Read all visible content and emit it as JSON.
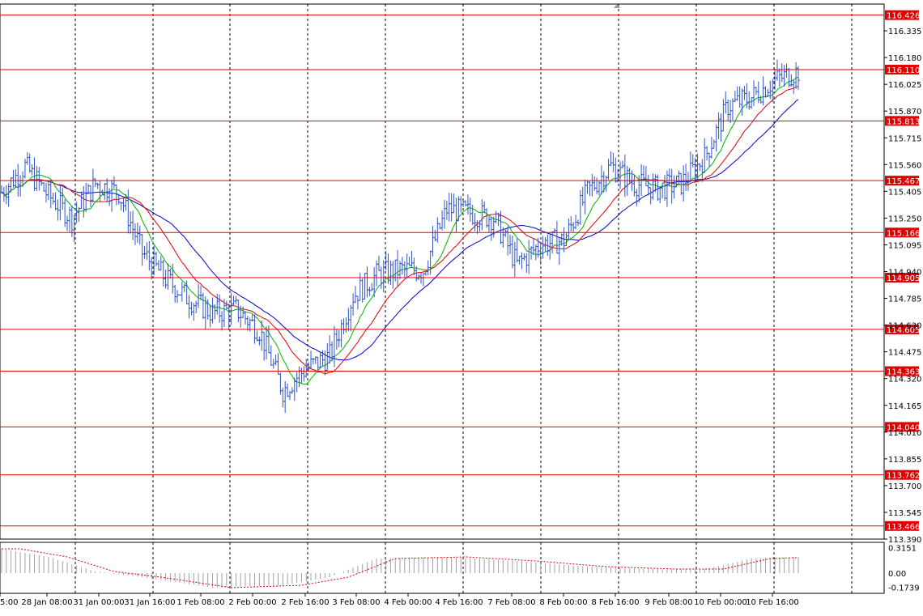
{
  "chart_data": {
    "type": "candlestick",
    "price_axis": {
      "min": 113.39,
      "max": 116.49,
      "ticks": [
        "116.335",
        "116.180",
        "116.025",
        "115.870",
        "115.715",
        "115.560",
        "115.405",
        "115.250",
        "115.095",
        "114.940",
        "114.785",
        "114.630",
        "114.475",
        "114.320",
        "114.165",
        "114.010",
        "113.855",
        "113.700",
        "113.545",
        "113.390"
      ]
    },
    "levels": [
      "116.426",
      "116.110",
      "115.813",
      "115.467",
      "115.166",
      "114.905",
      "114.605",
      "114.363",
      "114.040",
      "113.762",
      "113.466"
    ],
    "current_price": "116.110",
    "time_labels": [
      "5:00",
      "28 Jan 08:00",
      "31 Jan 00:00",
      "31 Jan 16:00",
      "1 Feb 08:00",
      "2 Feb 00:00",
      "2 Feb 16:00",
      "3 Feb 08:00",
      "4 Feb 00:00",
      "4 Feb 16:00",
      "7 Feb 08:00",
      "8 Feb 00:00",
      "8 Feb 16:00",
      "9 Feb 08:00",
      "10 Feb 00:00",
      "10 Feb 16:00"
    ],
    "price_path": [
      {
        "t": 0,
        "p": 115.4
      },
      {
        "t": 5,
        "p": 115.55
      },
      {
        "t": 10,
        "p": 115.38
      },
      {
        "t": 15,
        "p": 115.25
      },
      {
        "t": 20,
        "p": 115.45
      },
      {
        "t": 25,
        "p": 115.4
      },
      {
        "t": 30,
        "p": 115.05
      },
      {
        "t": 35,
        "p": 114.9
      },
      {
        "t": 40,
        "p": 114.78
      },
      {
        "t": 45,
        "p": 114.7
      },
      {
        "t": 50,
        "p": 114.72
      },
      {
        "t": 55,
        "p": 114.6
      },
      {
        "t": 60,
        "p": 114.25
      },
      {
        "t": 65,
        "p": 114.38
      },
      {
        "t": 70,
        "p": 114.45
      },
      {
        "t": 75,
        "p": 114.8
      },
      {
        "t": 80,
        "p": 114.92
      },
      {
        "t": 85,
        "p": 114.95
      },
      {
        "t": 90,
        "p": 114.95
      },
      {
        "t": 95,
        "p": 115.3
      },
      {
        "t": 100,
        "p": 115.28
      },
      {
        "t": 105,
        "p": 115.25
      },
      {
        "t": 110,
        "p": 114.98
      },
      {
        "t": 115,
        "p": 115.1
      },
      {
        "t": 120,
        "p": 115.12
      },
      {
        "t": 125,
        "p": 115.4
      },
      {
        "t": 130,
        "p": 115.55
      },
      {
        "t": 135,
        "p": 115.45
      },
      {
        "t": 140,
        "p": 115.42
      },
      {
        "t": 145,
        "p": 115.45
      },
      {
        "t": 150,
        "p": 115.6
      },
      {
        "t": 155,
        "p": 115.9
      },
      {
        "t": 160,
        "p": 115.95
      },
      {
        "t": 165,
        "p": 116.05
      },
      {
        "t": 170,
        "p": 116.1
      }
    ],
    "oscillator": {
      "ticks": [
        "0.3151",
        "0.00",
        "-0.1739"
      ],
      "min": -0.25,
      "max": 0.38,
      "path": [
        {
          "t": 0,
          "v": 0.3
        },
        {
          "t": 10,
          "v": 0.2
        },
        {
          "t": 20,
          "v": 0.02
        },
        {
          "t": 30,
          "v": -0.05
        },
        {
          "t": 45,
          "v": -0.18
        },
        {
          "t": 60,
          "v": -0.15
        },
        {
          "t": 70,
          "v": -0.05
        },
        {
          "t": 80,
          "v": 0.18
        },
        {
          "t": 95,
          "v": 0.2
        },
        {
          "t": 110,
          "v": 0.15
        },
        {
          "t": 125,
          "v": 0.08
        },
        {
          "t": 140,
          "v": 0.05
        },
        {
          "t": 150,
          "v": 0.05
        },
        {
          "t": 160,
          "v": 0.18
        },
        {
          "t": 170,
          "v": 0.2
        }
      ]
    },
    "colors": {
      "bars": "#2f55c6",
      "level": "#e00000",
      "ma_fast": "#00b300",
      "ma_mid": "#e00000",
      "ma_slow": "#0000cc",
      "grid": "#000000",
      "axis_text": "#000000"
    }
  }
}
